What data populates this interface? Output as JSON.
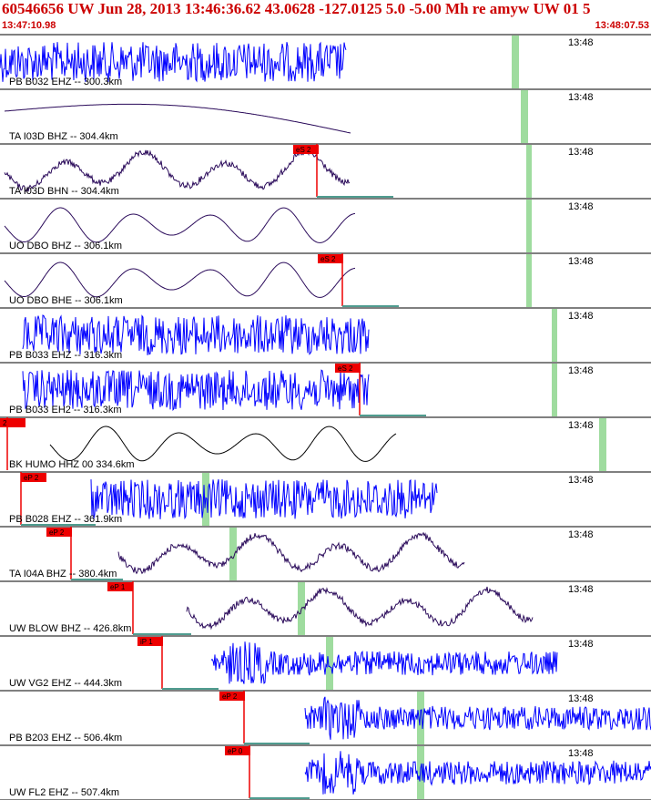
{
  "header": {
    "title": "60546656 UW Jun 28, 2013 13:46:36.62    43.0628 -127.0125  5.0 -5.00 Mh re amyw UW 01    5",
    "time_start": "13:47:10.98",
    "time_end": "13:48:07.53"
  },
  "colors": {
    "header_text": "#cc0000",
    "trace_blue": "#0000ff",
    "trace_purple": "#2a0a5a",
    "trace_black": "#000000",
    "pick_box": "#ee0000",
    "green_marker": "#9fdc9f",
    "baseline": "#4f9c8f"
  },
  "panels": [
    {
      "label": "PB B032 EHZ -- 300.3km",
      "time": "13:48",
      "picks": []
    },
    {
      "label": "TA I03D BHZ -- 304.4km",
      "time": "13:48",
      "picks": []
    },
    {
      "label": "TA I03D BHN -- 304.4km",
      "time": "13:48",
      "picks": [
        "eS 2"
      ]
    },
    {
      "label": "UO DBO BHZ -- 306.1km",
      "time": "13:48",
      "picks": []
    },
    {
      "label": "UO DBO BHE -- 306.1km",
      "time": "13:48",
      "picks": [
        "eS 2"
      ]
    },
    {
      "label": "PB B033 EHZ -- 316.3km",
      "time": "13:48",
      "picks": []
    },
    {
      "label": "PB B033 EH2 -- 316.3km",
      "time": "13:48",
      "picks": [
        "eS 2"
      ]
    },
    {
      "label": "BK HUMO HHZ 00 334.6km",
      "time": "13:48",
      "picks": [
        "2"
      ]
    },
    {
      "label": "PB B028 EHZ -- 361.9km",
      "time": "13:48",
      "picks": [
        "eP 2"
      ]
    },
    {
      "label": "TA I04A BHZ -- 380.4km",
      "time": "13:48",
      "picks": [
        "eP 2"
      ]
    },
    {
      "label": "UW BLOW BHZ -- 426.8km",
      "time": "13:48",
      "picks": [
        "eP 1"
      ]
    },
    {
      "label": "UW VG2 EHZ -- 444.3km",
      "time": "13:48",
      "picks": [
        "iP 1"
      ]
    },
    {
      "label": "PB B203 EHZ -- 506.4km",
      "time": "13:48",
      "picks": [
        "eP 2"
      ]
    },
    {
      "label": "UW FL2 EHZ -- 507.4km",
      "time": "13:48",
      "picks": [
        "eP 0"
      ]
    }
  ]
}
